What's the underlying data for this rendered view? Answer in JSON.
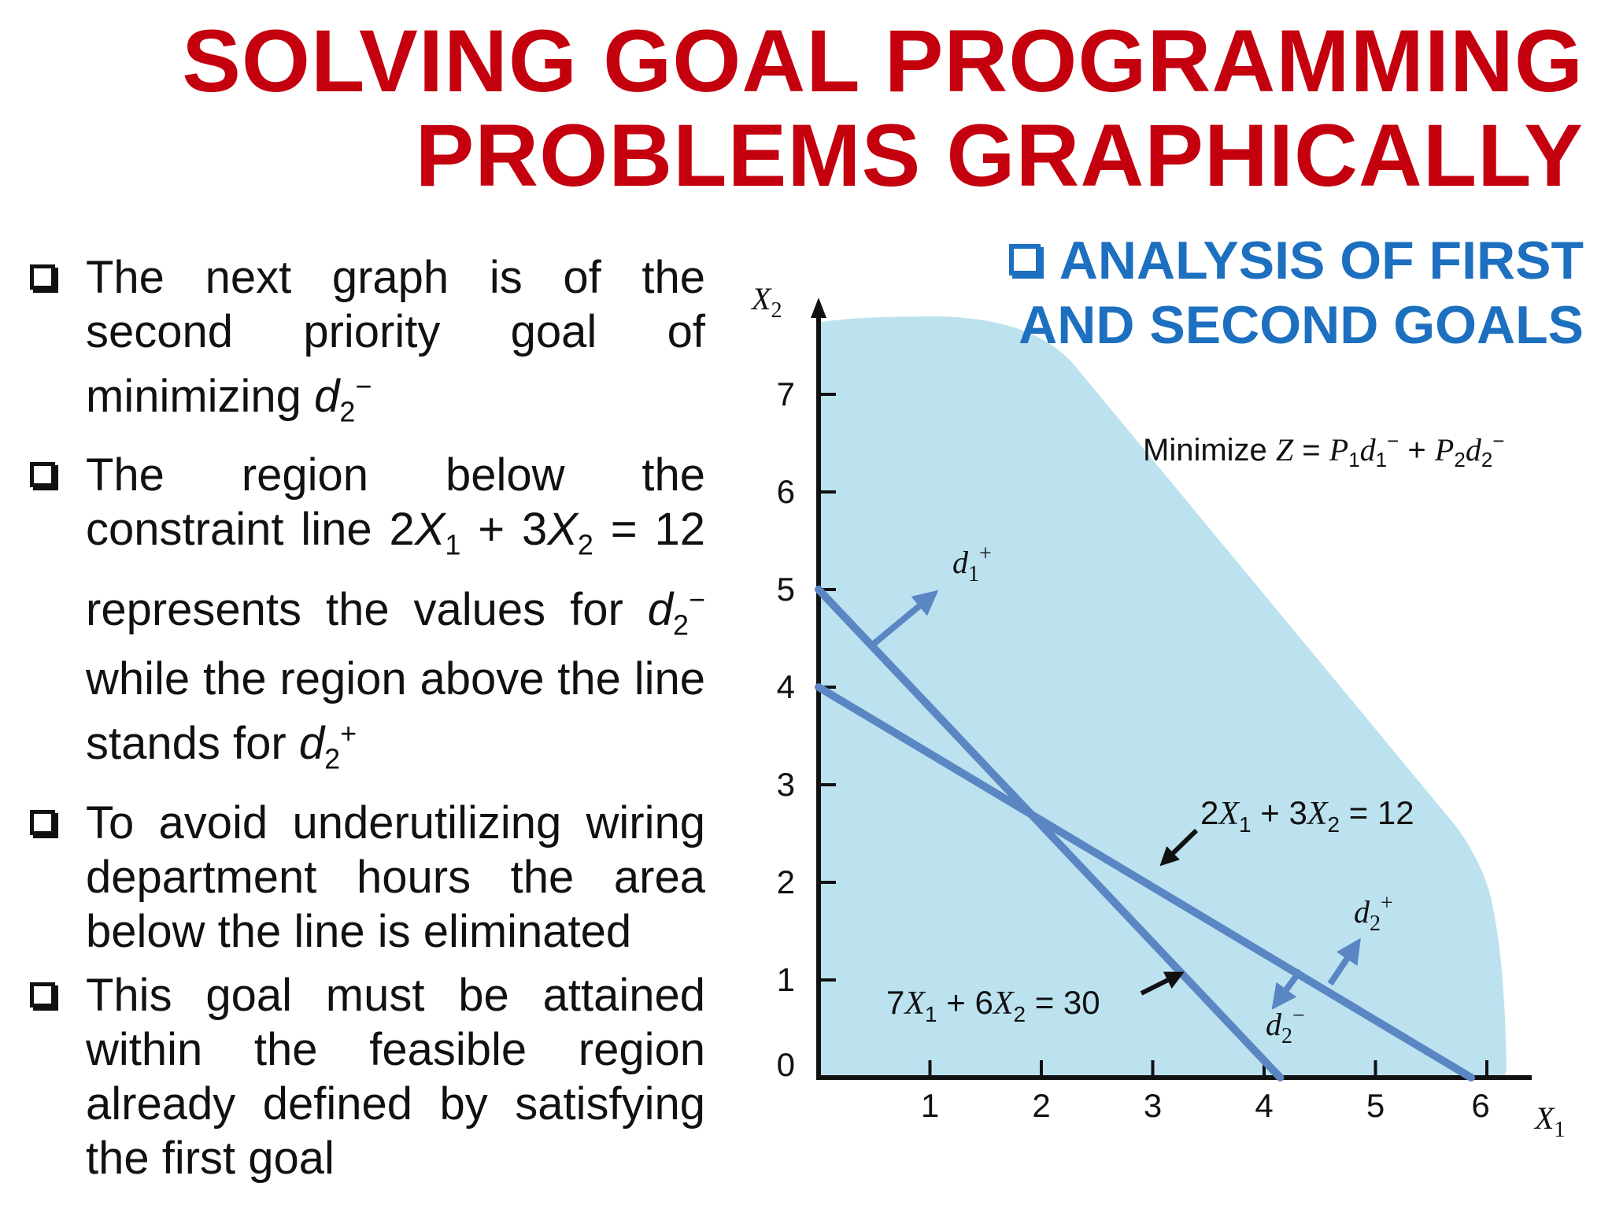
{
  "title": {
    "line1": "SOLVING GOAL PROGRAMMING",
    "line2": "PROBLEMS GRAPHICALLY"
  },
  "bullets": [
    {
      "segments": [
        "The next graph is of the second priority goal of minimizing "
      ],
      "math": "d2-"
    },
    {
      "text_a": "The region below the constraint line 2",
      "text_b": " + 3",
      "text_c": " = 12 represents the values for ",
      "text_d": " while the region above the line stands for "
    },
    {
      "text": "To avoid underutilizing wiring department hours the area below the line is eliminated"
    },
    {
      "text": "This goal must be attained within the feasible region already defined by satisfying the first goal"
    }
  ],
  "section_heading": {
    "line1": "ANALYSIS OF FIRST",
    "line2": "AND SECOND GOALS"
  },
  "chart_data": {
    "type": "line",
    "x_axis": {
      "label": "X1",
      "ticks": [
        1,
        2,
        3,
        4,
        5,
        6
      ],
      "range": [
        0,
        6
      ]
    },
    "y_axis": {
      "label": "X2",
      "ticks": [
        0,
        1,
        2,
        3,
        4,
        5,
        6,
        7
      ],
      "range": [
        0,
        7.7
      ]
    },
    "lines": [
      {
        "name": "2X1 + 3X2 = 12",
        "x": [
          0,
          6
        ],
        "y": [
          4,
          0
        ]
      },
      {
        "name": "7X1 + 6X2 = 30",
        "x": [
          0,
          4.2857
        ],
        "y": [
          5,
          0
        ]
      }
    ],
    "objective": "Minimize Z = P1d1− + P2d2−",
    "region_labels": [
      "d1+",
      "d2+",
      "d2−"
    ],
    "shaded_region_color": "#bce2ef",
    "line_color": "#5b86c4"
  },
  "colors": {
    "title": "#c4000e",
    "heading": "#1d6fbf",
    "region": "#bce2ef",
    "line": "#5b86c4"
  }
}
